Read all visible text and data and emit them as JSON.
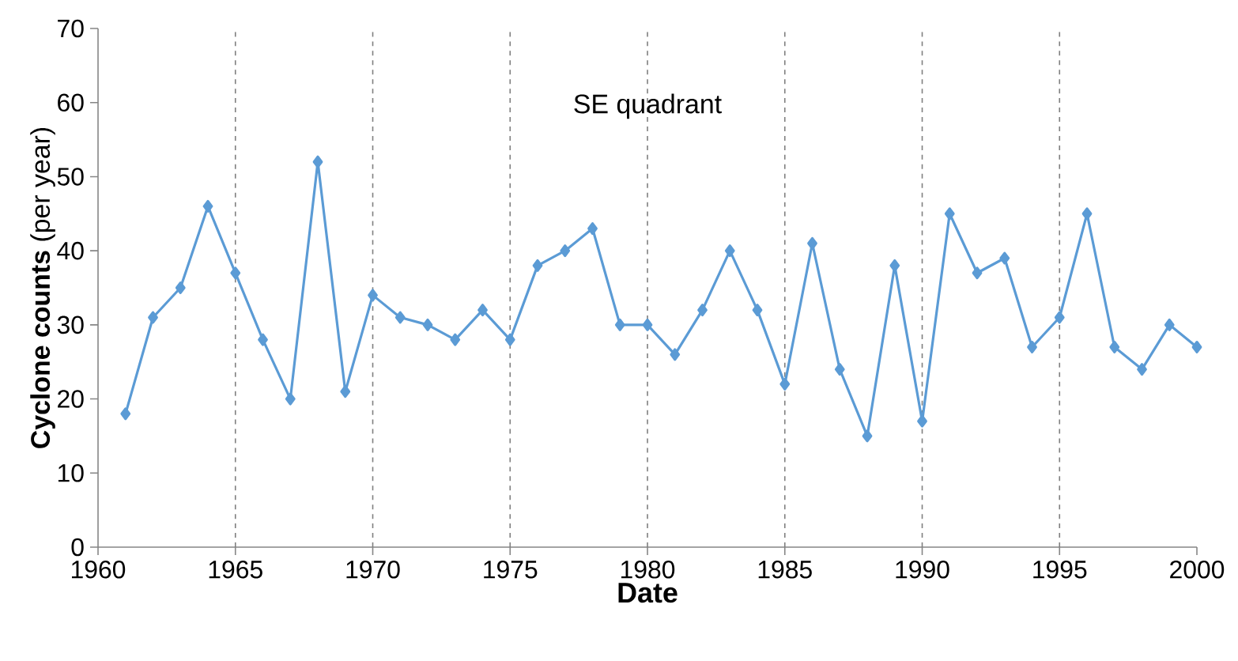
{
  "chart_data": {
    "type": "line",
    "title": "SE quadrant",
    "xlabel": "Date",
    "ylabel": "**Cyclone counts** (per year)",
    "x": [
      1961,
      1962,
      1963,
      1964,
      1965,
      1966,
      1967,
      1968,
      1969,
      1970,
      1971,
      1972,
      1973,
      1974,
      1975,
      1976,
      1977,
      1978,
      1979,
      1980,
      1981,
      1982,
      1983,
      1984,
      1985,
      1986,
      1987,
      1988,
      1989,
      1990,
      1991,
      1992,
      1993,
      1994,
      1995,
      1996,
      1997,
      1998,
      1999,
      2000
    ],
    "values": [
      18,
      31,
      35,
      46,
      37,
      28,
      20,
      52,
      21,
      34,
      31,
      30,
      28,
      32,
      28,
      38,
      40,
      43,
      30,
      30,
      26,
      32,
      40,
      32,
      22,
      41,
      24,
      15,
      38,
      17,
      45,
      37,
      39,
      27,
      31,
      45,
      27,
      24,
      30,
      27
    ],
    "color": "#5b9bd5",
    "marker": "diamond",
    "line_style": "solid",
    "xlim": [
      1960,
      2000
    ],
    "xticks": [
      1960,
      1965,
      1970,
      1975,
      1980,
      1985,
      1990,
      1995,
      2000
    ],
    "ylim": [
      0,
      70
    ],
    "yticks": [
      0,
      10,
      20,
      30,
      40,
      50,
      60,
      70
    ],
    "ref_lines": [
      {
        "axis": "x",
        "value": 1965,
        "color": "#7f7f7f",
        "line_style": "dashed"
      },
      {
        "axis": "x",
        "value": 1970,
        "color": "#7f7f7f",
        "line_style": "dashed"
      },
      {
        "axis": "x",
        "value": 1975,
        "color": "#7f7f7f",
        "line_style": "dashed"
      },
      {
        "axis": "x",
        "value": 1980,
        "color": "#7f7f7f",
        "line_style": "dashed"
      },
      {
        "axis": "x",
        "value": 1985,
        "color": "#7f7f7f",
        "line_style": "dashed"
      },
      {
        "axis": "x",
        "value": 1990,
        "color": "#7f7f7f",
        "line_style": "dashed"
      },
      {
        "axis": "x",
        "value": 1995,
        "color": "#7f7f7f",
        "line_style": "dashed"
      }
    ],
    "grid": false
  }
}
